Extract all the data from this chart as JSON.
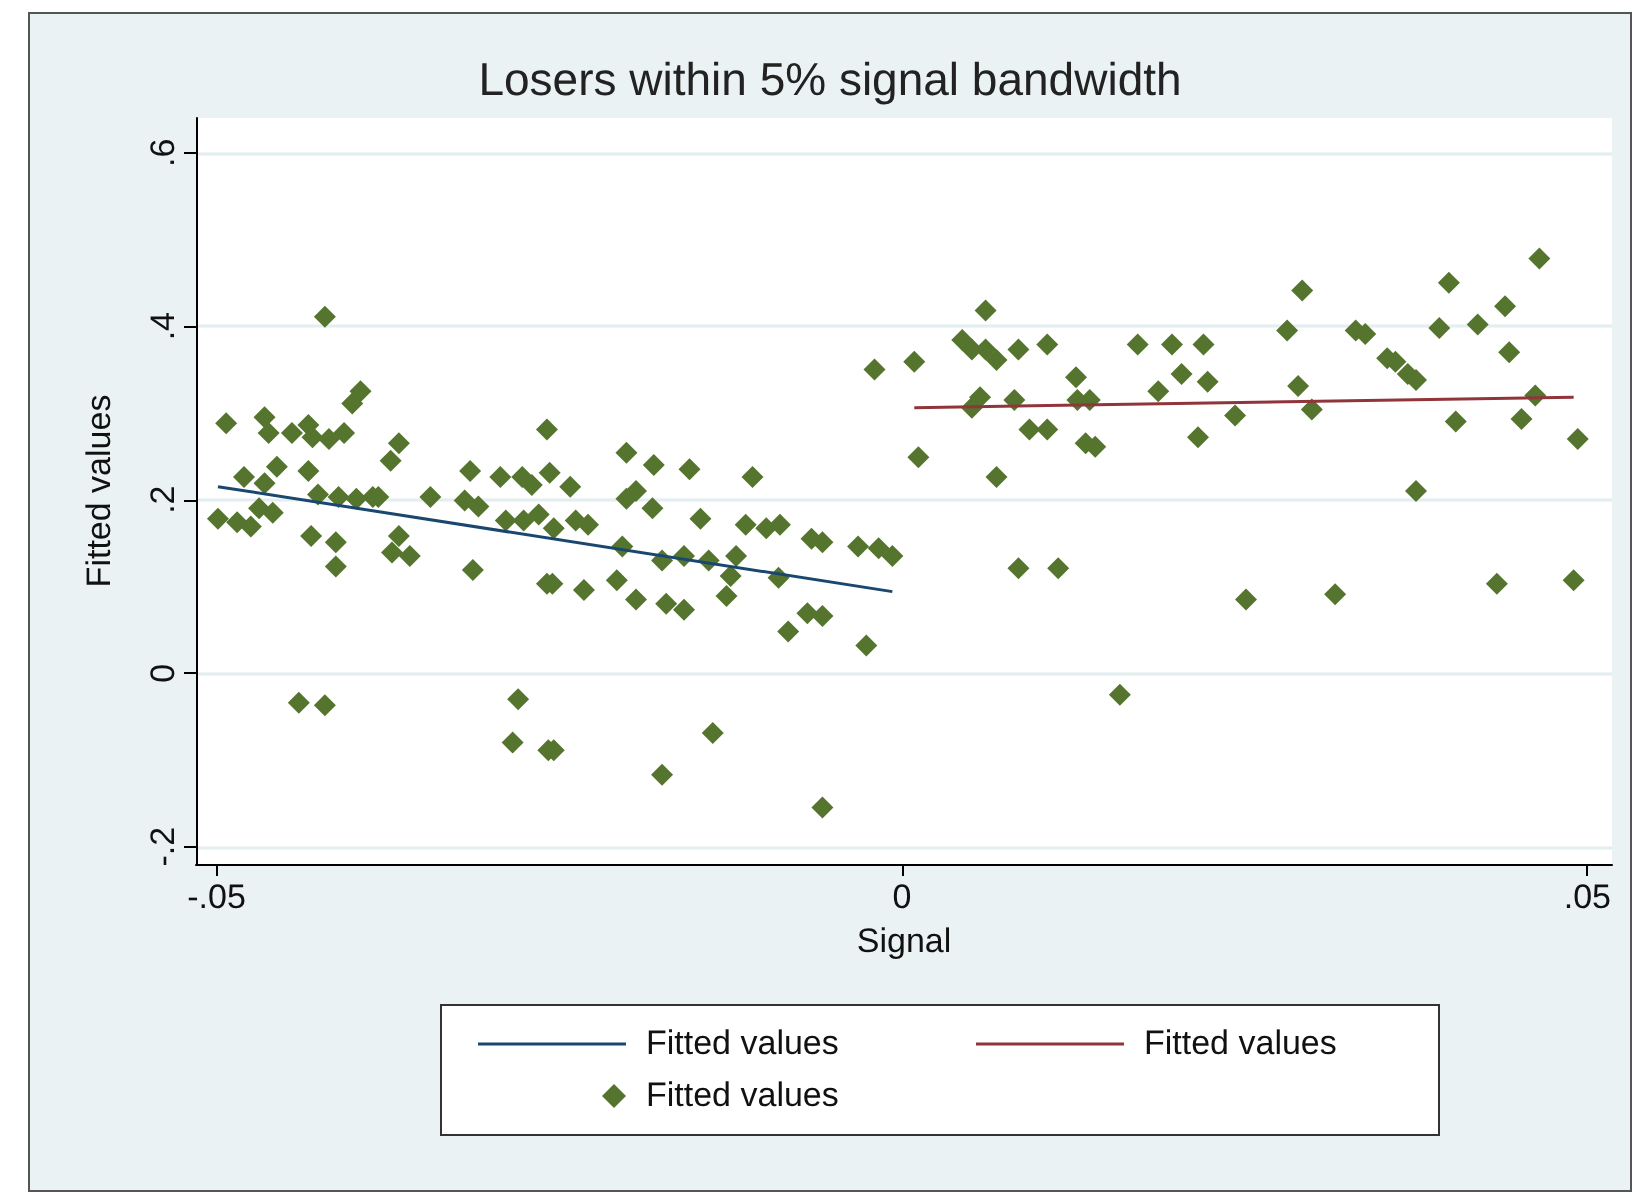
{
  "chart_data": {
    "type": "scatter",
    "title": "Losers within 5% signal bandwidth",
    "xlabel": "Signal",
    "ylabel": "Fitted values",
    "xlim": [
      -0.0515,
      0.0518
    ],
    "xticks": [
      {
        "value": -0.05,
        "label": "-.05"
      },
      0,
      {
        "value": 0.05,
        "label": ".05"
      }
    ],
    "ylim": [
      -0.22,
      0.64
    ],
    "yticks": [
      {
        "value": -0.2,
        "label": "-.2"
      },
      0,
      {
        "value": 0.2,
        "label": ".2"
      },
      {
        "value": 0.4,
        "label": ".4"
      },
      {
        "value": 0.6,
        "label": ".6"
      }
    ],
    "grid": "y",
    "legend": "bottom",
    "series": [
      {
        "name": "Fitted values",
        "type": "line",
        "color": "#1a476f",
        "x": [
          -0.0499,
          -0.0007
        ],
        "values": [
          0.215,
          0.094
        ]
      },
      {
        "name": "Fitted values",
        "type": "line",
        "color": "#90353b",
        "x": [
          0.0009,
          0.049
        ],
        "values": [
          0.306,
          0.318
        ]
      },
      {
        "name": "Fitted values",
        "marker": "diamond",
        "color": "#55752f",
        "x": [
          -0.0499,
          -0.0493,
          -0.0485,
          -0.0475,
          -0.0469,
          -0.048,
          -0.0465,
          -0.0462,
          -0.0465,
          -0.0459,
          -0.0456,
          -0.0445,
          -0.0433,
          -0.043,
          -0.0418,
          -0.0407,
          -0.0401,
          -0.0395,
          -0.0421,
          -0.0433,
          -0.0426,
          -0.0411,
          -0.0398,
          -0.0386,
          -0.0382,
          -0.0431,
          -0.0413,
          -0.0413,
          -0.0367,
          -0.0373,
          -0.0367,
          -0.0372,
          -0.0359,
          -0.0344,
          -0.0315,
          -0.0319,
          -0.0309,
          -0.0293,
          -0.0277,
          -0.027,
          -0.0289,
          -0.0276,
          -0.0265,
          -0.0313,
          -0.0259,
          -0.0259,
          -0.044,
          -0.0421,
          -0.028,
          -0.0284,
          -0.0258,
          -0.0257,
          -0.0242,
          -0.0201,
          -0.0181,
          -0.0155,
          -0.0109,
          -0.0201,
          -0.0194,
          -0.0182,
          -0.0254,
          -0.0238,
          -0.0229,
          -0.0204,
          -0.0175,
          -0.0159,
          -0.0147,
          -0.0141,
          -0.0121,
          -0.0114,
          -0.0099,
          -0.0089,
          -0.0066,
          -0.0058,
          -0.0032,
          -0.0017,
          -0.0007,
          -0.0255,
          -0.0232,
          -0.0208,
          -0.0194,
          -0.0172,
          -0.0159,
          -0.0128,
          -0.0125,
          -0.009,
          -0.0083,
          -0.0069,
          -0.0058,
          -0.0026,
          -0.0254,
          -0.0175,
          -0.0138,
          -0.0058,
          -0.002,
          0.0012,
          0.0009,
          0.0061,
          0.0044,
          0.0051,
          0.0061,
          0.0069,
          0.0085,
          0.0106,
          0.0051,
          0.0057,
          0.0082,
          0.0127,
          0.0128,
          0.0137,
          0.0093,
          0.0106,
          0.0134,
          0.0141,
          0.0069,
          0.0172,
          0.0197,
          0.022,
          0.0204,
          0.0223,
          0.0187,
          0.0216,
          0.0243,
          0.0085,
          0.0114,
          0.0159,
          0.0251,
          0.0292,
          0.0281,
          0.0331,
          0.0338,
          0.0354,
          0.036,
          0.0369,
          0.0375,
          0.0289,
          0.0299,
          0.0399,
          0.0392,
          0.042,
          0.044,
          0.0443,
          0.0465,
          0.0462,
          0.0404,
          0.0452,
          0.0493,
          0.0375,
          0.0316,
          0.0434,
          0.049
        ],
        "values": [
          0.178,
          0.288,
          0.174,
          0.169,
          0.19,
          0.226,
          0.295,
          0.277,
          0.219,
          0.185,
          0.238,
          0.277,
          0.286,
          0.272,
          0.27,
          0.277,
          0.311,
          0.325,
          0.411,
          0.233,
          0.206,
          0.203,
          0.201,
          0.203,
          0.203,
          0.158,
          0.151,
          0.123,
          0.265,
          0.245,
          0.158,
          0.139,
          0.135,
          0.203,
          0.233,
          0.199,
          0.192,
          0.226,
          0.226,
          0.217,
          0.176,
          0.176,
          0.183,
          0.119,
          0.103,
          0.281,
          -0.034,
          -0.037,
          -0.03,
          -0.08,
          -0.089,
          0.231,
          0.215,
          0.254,
          0.24,
          0.235,
          0.226,
          0.201,
          0.21,
          0.19,
          0.167,
          0.176,
          0.171,
          0.146,
          0.13,
          0.135,
          0.178,
          0.13,
          0.135,
          0.171,
          0.167,
          0.171,
          0.155,
          0.151,
          0.146,
          0.144,
          0.135,
          0.103,
          0.096,
          0.107,
          0.085,
          0.08,
          0.073,
          0.089,
          0.112,
          0.11,
          0.048,
          0.069,
          0.066,
          0.032,
          -0.089,
          -0.117,
          -0.069,
          -0.155,
          0.35,
          0.249,
          0.359,
          0.418,
          0.384,
          0.373,
          0.373,
          0.361,
          0.373,
          0.379,
          0.306,
          0.318,
          0.315,
          0.341,
          0.315,
          0.315,
          0.281,
          0.281,
          0.265,
          0.261,
          0.226,
          0.379,
          0.379,
          0.379,
          0.345,
          0.336,
          0.325,
          0.272,
          0.297,
          0.121,
          0.121,
          -0.025,
          0.085,
          0.441,
          0.395,
          0.395,
          0.391,
          0.363,
          0.359,
          0.345,
          0.338,
          0.331,
          0.304,
          0.45,
          0.398,
          0.402,
          0.423,
          0.37,
          0.478,
          0.32,
          0.29,
          0.293,
          0.27,
          0.21,
          0.091,
          0.103,
          0.107
        ]
      }
    ]
  }
}
